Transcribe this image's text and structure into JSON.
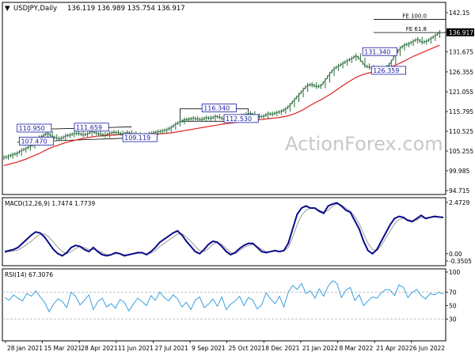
{
  "chart_data": {
    "type": "line",
    "symbol": "USDJPY,Daily",
    "ohlc": "136.119 136.989 135.754 136.917",
    "last_price": "136.917",
    "watermark": "ActionForex.com",
    "x_ticks": [
      "28 Jan 2021",
      "15 Mar 2021",
      "28 Apr 2021",
      "11 Jun 2021",
      "27 Jul 2021",
      "9 Sep 2021",
      "25 Oct 2021",
      "8 Dec 2021",
      "21 Jan 2022",
      "8 Mar 2022",
      "21 Apr 2022",
      "6 Jun 2022"
    ],
    "price_panel": {
      "y_ticks": [
        "142.15",
        "136.917",
        "131.675",
        "126.355",
        "121.055",
        "115.795",
        "110.525",
        "105.255",
        "99.985",
        "94.715"
      ],
      "ylim": [
        94.715,
        142.15
      ],
      "price_x": [
        0,
        4,
        8,
        12,
        16,
        20,
        24,
        28,
        32,
        36,
        40,
        44,
        48,
        52,
        56,
        60,
        64,
        68,
        72,
        76,
        80,
        84,
        88,
        92,
        96,
        100,
        104,
        108,
        112,
        116,
        120,
        124,
        128,
        132,
        136,
        140,
        144,
        148,
        152,
        156,
        160,
        164,
        168,
        172,
        176,
        180,
        184,
        188,
        192,
        196,
        200,
        204,
        208,
        212,
        216,
        220,
        224,
        228,
        232,
        236,
        240,
        244,
        248,
        252,
        256,
        260,
        264,
        268,
        272,
        276,
        280,
        284,
        288,
        292,
        296,
        300,
        304,
        308,
        312,
        316,
        320,
        324,
        328,
        332,
        336,
        340,
        344,
        348,
        352,
        356,
        360,
        364,
        368,
        372,
        376,
        380,
        384,
        388,
        392,
        396
      ],
      "price": [
        103.5,
        103.8,
        104.3,
        104.6,
        105.4,
        105.9,
        106.5,
        107.3,
        108.8,
        109.4,
        110.0,
        109.1,
        108.7,
        108.5,
        109.3,
        109.5,
        109.9,
        110.0,
        109.5,
        109.8,
        110.6,
        110.0,
        109.7,
        109.4,
        110.0,
        110.3,
        110.1,
        109.7,
        110.2,
        109.9,
        109.6,
        109.5,
        109.3,
        109.8,
        110.1,
        110.4,
        110.6,
        110.9,
        111.5,
        112.4,
        113.0,
        113.6,
        113.7,
        114.0,
        113.8,
        113.6,
        114.2,
        113.9,
        114.5,
        114.3,
        113.7,
        113.4,
        113.6,
        114.1,
        114.6,
        115.0,
        115.3,
        114.7,
        114.4,
        114.5,
        115.2,
        115.1,
        115.5,
        115.8,
        116.4,
        117.5,
        118.9,
        120.2,
        121.6,
        122.8,
        123.0,
        122.4,
        122.6,
        124.1,
        125.8,
        127.2,
        127.9,
        128.6,
        129.3,
        129.9,
        130.7,
        129.6,
        128.0,
        127.6,
        127.2,
        126.6,
        126.8,
        127.6,
        129.0,
        131.2,
        132.6,
        133.5,
        133.8,
        134.5,
        135.1,
        134.2,
        134.5,
        135.2,
        136.0,
        136.917
      ],
      "sma": [
        101.4,
        101.7,
        102.0,
        102.3,
        102.7,
        103.1,
        103.6,
        104.1,
        104.6,
        105.2,
        105.8,
        106.3,
        106.7,
        107.1,
        107.5,
        107.8,
        108.1,
        108.4,
        108.6,
        108.8,
        109.0,
        109.2,
        109.3,
        109.4,
        109.5,
        109.5,
        109.6,
        109.6,
        109.7,
        109.7,
        109.7,
        109.7,
        109.7,
        109.7,
        109.8,
        109.8,
        109.9,
        110.0,
        110.1,
        110.3,
        110.5,
        110.7,
        110.9,
        111.1,
        111.3,
        111.5,
        111.7,
        111.9,
        112.1,
        112.3,
        112.5,
        112.6,
        112.8,
        112.9,
        113.1,
        113.2,
        113.4,
        113.5,
        113.6,
        113.7,
        113.9,
        114.0,
        114.1,
        114.3,
        114.5,
        114.8,
        115.2,
        115.7,
        116.3,
        117.0,
        117.7,
        118.3,
        118.9,
        119.6,
        120.3,
        121.1,
        121.9,
        122.7,
        123.5,
        124.2,
        124.9,
        125.4,
        125.8,
        126.1,
        126.4,
        126.7,
        127.0,
        127.3,
        127.7,
        128.2,
        128.7,
        129.3,
        129.9,
        130.5,
        131.0,
        131.5,
        132.0,
        132.5,
        133.0,
        133.5
      ],
      "fib_levels": [
        {
          "label": "FE 100.0",
          "value": 140.35
        },
        {
          "label": "FE 61.8",
          "value": 136.85
        }
      ],
      "labels": [
        {
          "text": "110.950",
          "x": 12,
          "y": 110.95
        },
        {
          "text": "107.470",
          "x": 14,
          "y": 107.47
        },
        {
          "text": "111.659",
          "x": 64,
          "y": 111.2
        },
        {
          "text": "109.119",
          "x": 108,
          "y": 108.4
        },
        {
          "text": "116.340",
          "x": 180,
          "y": 116.34
        },
        {
          "text": "112.530",
          "x": 200,
          "y": 113.5
        },
        {
          "text": "131.340",
          "x": 326,
          "y": 131.34
        },
        {
          "text": "126.359",
          "x": 334,
          "y": 126.35
        }
      ],
      "channels": [
        {
          "x1": 12,
          "y1": 110.9,
          "x2": 116,
          "y2": 111.7
        },
        {
          "x1": 12,
          "y1": 107.6,
          "x2": 130,
          "y2": 108.9
        }
      ],
      "boxes": [
        {
          "x1": 160,
          "y1": 113.2,
          "x2": 222,
          "y2": 116.5
        }
      ]
    },
    "macd_panel": {
      "title": "MACD(12,26,9) 1.7474 1.7739",
      "y_ticks": [
        "2.4729",
        "0.00",
        "-0.3505"
      ],
      "ylim": [
        -0.3505,
        2.4729
      ],
      "macd": [
        0.1,
        0.15,
        0.2,
        0.3,
        0.5,
        0.7,
        0.9,
        1.05,
        1.0,
        0.8,
        0.5,
        0.2,
        0.0,
        -0.1,
        0.05,
        0.3,
        0.4,
        0.35,
        0.2,
        0.1,
        0.3,
        0.1,
        -0.05,
        -0.1,
        -0.05,
        0.05,
        0.0,
        -0.1,
        -0.05,
        0.0,
        0.05,
        0.05,
        -0.05,
        0.1,
        0.3,
        0.55,
        0.7,
        0.85,
        1.0,
        1.1,
        0.9,
        0.6,
        0.35,
        0.1,
        0.0,
        0.2,
        0.45,
        0.6,
        0.55,
        0.35,
        0.1,
        -0.05,
        0.05,
        0.25,
        0.4,
        0.5,
        0.5,
        0.3,
        0.1,
        0.05,
        0.1,
        0.15,
        0.1,
        0.15,
        0.5,
        1.2,
        1.9,
        2.2,
        2.3,
        2.2,
        2.2,
        2.05,
        1.95,
        2.3,
        2.4,
        2.45,
        2.3,
        2.1,
        2.0,
        1.6,
        1.2,
        0.6,
        0.15,
        0.0,
        0.2,
        0.6,
        1.0,
        1.4,
        1.7,
        1.8,
        1.75,
        1.6,
        1.55,
        1.7,
        1.85,
        1.7,
        1.75,
        1.8,
        1.77,
        1.75
      ],
      "signal": [
        0.05,
        0.1,
        0.13,
        0.18,
        0.3,
        0.45,
        0.6,
        0.8,
        0.95,
        0.95,
        0.8,
        0.55,
        0.3,
        0.1,
        0.0,
        0.1,
        0.25,
        0.35,
        0.3,
        0.2,
        0.2,
        0.15,
        0.05,
        -0.05,
        -0.05,
        0.0,
        0.0,
        -0.05,
        -0.05,
        -0.02,
        0.02,
        0.03,
        0.0,
        0.03,
        0.15,
        0.35,
        0.5,
        0.65,
        0.8,
        0.95,
        0.95,
        0.8,
        0.6,
        0.35,
        0.15,
        0.1,
        0.25,
        0.45,
        0.55,
        0.45,
        0.25,
        0.05,
        0.0,
        0.15,
        0.3,
        0.4,
        0.45,
        0.35,
        0.2,
        0.1,
        0.1,
        0.12,
        0.12,
        0.13,
        0.3,
        0.8,
        1.4,
        1.85,
        2.1,
        2.2,
        2.2,
        2.1,
        2.0,
        2.1,
        2.3,
        2.4,
        2.35,
        2.2,
        2.05,
        1.8,
        1.45,
        0.95,
        0.5,
        0.2,
        0.15,
        0.4,
        0.75,
        1.1,
        1.45,
        1.65,
        1.7,
        1.65,
        1.6,
        1.62,
        1.75,
        1.72,
        1.74,
        1.77,
        1.77,
        1.77
      ]
    },
    "rsi_panel": {
      "title": "RSI(14) 67.3076",
      "y_ticks": [
        "100",
        "70",
        "50",
        "30"
      ],
      "ylim": [
        0,
        100
      ],
      "levels": [
        70,
        30
      ],
      "rsi": [
        62,
        58,
        66,
        61,
        57,
        68,
        64,
        72,
        63,
        55,
        41,
        52,
        60,
        56,
        47,
        70,
        64,
        51,
        58,
        66,
        44,
        56,
        61,
        48,
        53,
        46,
        59,
        55,
        42,
        52,
        61,
        56,
        50,
        65,
        58,
        70,
        62,
        57,
        66,
        60,
        48,
        55,
        44,
        58,
        63,
        47,
        52,
        60,
        49,
        63,
        44,
        52,
        57,
        64,
        50,
        62,
        58,
        45,
        51,
        69,
        60,
        53,
        64,
        48,
        70,
        80,
        74,
        83,
        68,
        72,
        61,
        75,
        64,
        79,
        87,
        83,
        62,
        73,
        77,
        58,
        66,
        50,
        57,
        63,
        61,
        69,
        74,
        73,
        65,
        81,
        77,
        62,
        70,
        74,
        65,
        60,
        68,
        66,
        70,
        67.3
      ]
    }
  }
}
